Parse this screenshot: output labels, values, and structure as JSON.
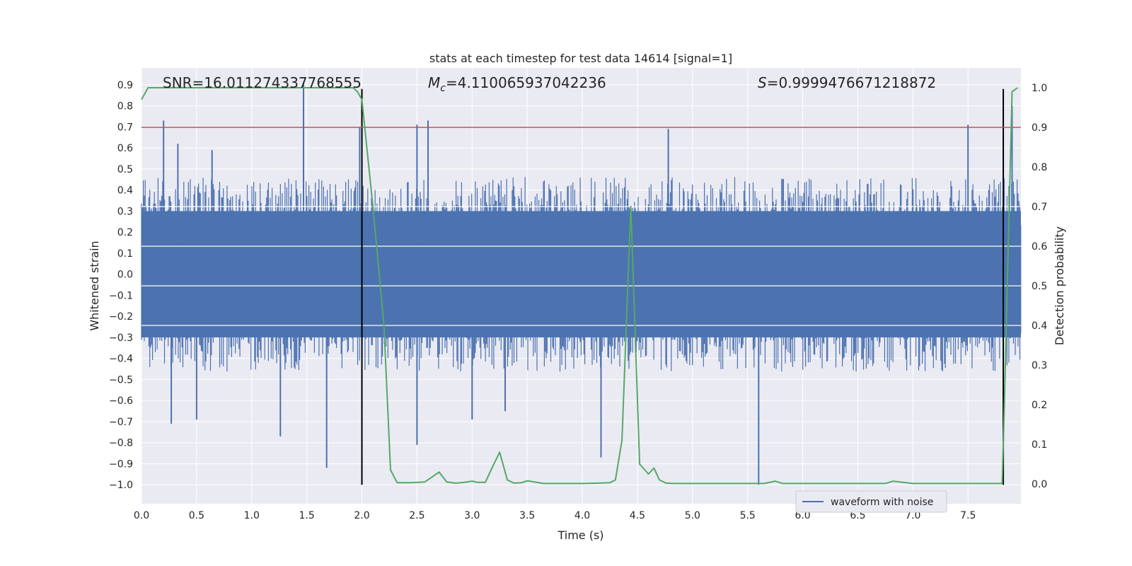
{
  "chart_data": {
    "type": "line",
    "title": "stats at each timestep for test data 14614 [signal=1]",
    "xlabel": "Time (s)",
    "ylabel": "Whitened strain",
    "y2label": "Detection probability",
    "xlim": [
      0.0,
      7.98
    ],
    "ylim": [
      -1.09,
      0.98
    ],
    "y2lim": [
      -0.05,
      1.05
    ],
    "x_ticks": [
      "0.0",
      "0.5",
      "1.0",
      "1.5",
      "2.0",
      "2.5",
      "3.0",
      "3.5",
      "4.0",
      "4.5",
      "5.0",
      "5.5",
      "6.0",
      "6.5",
      "7.0",
      "7.5"
    ],
    "y_ticks": [
      "0.9",
      "0.8",
      "0.7",
      "0.6",
      "0.5",
      "0.4",
      "0.3",
      "0.2",
      "0.1",
      "0.0",
      "−0.1",
      "−0.2",
      "−0.3",
      "−0.4",
      "−0.5",
      "−0.6",
      "−0.7",
      "−0.8",
      "−0.9",
      "−1.0"
    ],
    "y2_ticks": [
      "1.0",
      "0.9",
      "0.8",
      "0.7",
      "0.6",
      "0.5",
      "0.4",
      "0.3",
      "0.2",
      "0.1",
      "0.0"
    ],
    "annotations": {
      "snr": "SNR=16.011274337768555",
      "mc_symbol": "M",
      "mc_sub": "c",
      "mc_value": "=4.110065937042236",
      "s_symbol": "S",
      "s_value": "=0.9999476671218872"
    },
    "legend": {
      "label": "waveform with noise",
      "position": "lower-right"
    },
    "colors": {
      "waveform": "#4c72b0",
      "probability": "#55a868",
      "threshold": "#c44e52",
      "markers": "#000000",
      "background": "#eaeaf2",
      "grid": "#ffffff"
    },
    "threshold_prob": 0.9,
    "vertical_markers": [
      {
        "x": 2.0,
        "y_from": -1.0,
        "y_to": 0.88
      },
      {
        "x": 7.82,
        "y_from": -1.0,
        "y_to": 0.88
      }
    ],
    "waveform_envelope": {
      "x_range": [
        0.0,
        7.98
      ],
      "core_band": [
        -0.42,
        0.42
      ],
      "spike_points": [
        [
          0.2,
          0.73
        ],
        [
          0.27,
          -0.71
        ],
        [
          0.33,
          0.62
        ],
        [
          0.5,
          -0.69
        ],
        [
          0.64,
          0.59
        ],
        [
          1.26,
          -0.77
        ],
        [
          1.47,
          0.91
        ],
        [
          1.68,
          -0.92
        ],
        [
          1.98,
          0.7
        ],
        [
          2.5,
          -0.81
        ],
        [
          2.5,
          0.71
        ],
        [
          2.6,
          0.73
        ],
        [
          3.0,
          -0.69
        ],
        [
          3.3,
          -0.65
        ],
        [
          4.17,
          -0.87
        ],
        [
          4.78,
          0.69
        ],
        [
          5.6,
          -1.0
        ],
        [
          7.5,
          0.71
        ],
        [
          7.9,
          0.8
        ]
      ]
    },
    "series": [
      {
        "name": "detection probability",
        "axis": "y2",
        "x": [
          0.0,
          0.06,
          0.3,
          0.6,
          1.0,
          1.3,
          1.6,
          1.85,
          1.92,
          1.96,
          2.0,
          2.1,
          2.2,
          2.26,
          2.32,
          2.45,
          2.57,
          2.65,
          2.7,
          2.77,
          2.85,
          2.93,
          3.0,
          3.05,
          3.12,
          3.18,
          3.25,
          3.32,
          3.38,
          3.45,
          3.5,
          3.65,
          3.8,
          4.0,
          4.15,
          4.25,
          4.3,
          4.36,
          4.44,
          4.52,
          4.6,
          4.65,
          4.7,
          4.76,
          4.84,
          5.0,
          5.5,
          5.65,
          5.75,
          5.82,
          6.0,
          6.5,
          6.75,
          6.82,
          7.0,
          7.3,
          7.6,
          7.81,
          7.83,
          7.9,
          7.95
        ],
        "y": [
          0.97,
          1.0,
          1.0,
          1.0,
          1.0,
          1.0,
          1.0,
          1.0,
          1.0,
          0.99,
          0.97,
          0.7,
          0.4,
          0.035,
          0.003,
          0.003,
          0.005,
          0.02,
          0.03,
          0.005,
          0.002,
          0.004,
          0.007,
          0.004,
          0.004,
          0.04,
          0.08,
          0.01,
          0.002,
          0.003,
          0.008,
          0.001,
          0.001,
          0.001,
          0.002,
          0.003,
          0.01,
          0.11,
          0.7,
          0.05,
          0.025,
          0.04,
          0.01,
          0.002,
          0.001,
          0.001,
          0.001,
          0.001,
          0.007,
          0.001,
          0.001,
          0.001,
          0.001,
          0.007,
          0.001,
          0.001,
          0.001,
          0.001,
          0.2,
          0.99,
          1.0
        ]
      }
    ]
  }
}
